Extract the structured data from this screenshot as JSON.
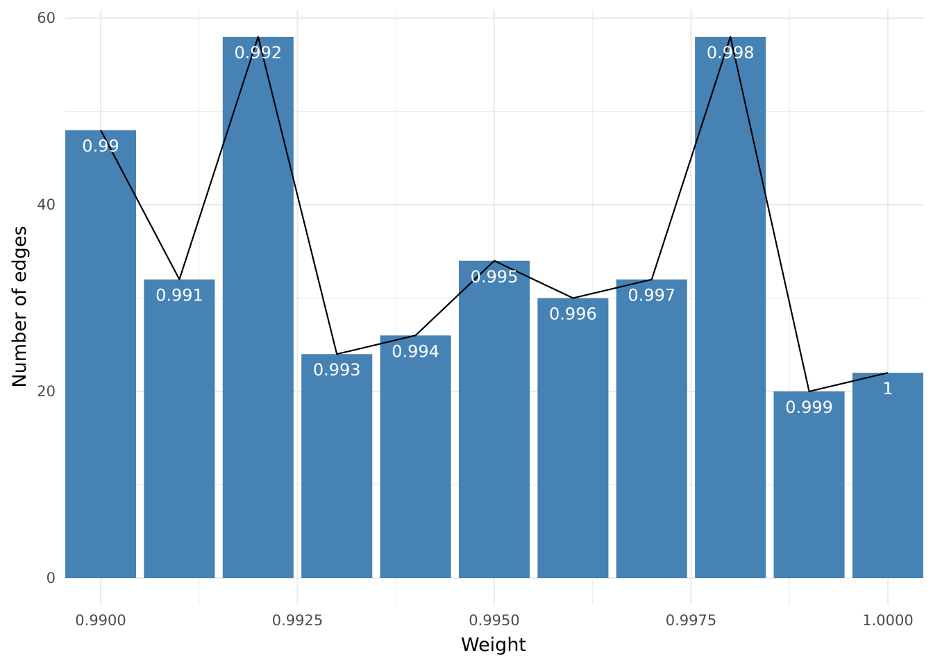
{
  "chart_data": {
    "type": "bar",
    "title": "",
    "xlabel": "Weight",
    "ylabel": "Number of edges",
    "x": [
      0.99,
      0.991,
      0.992,
      0.993,
      0.994,
      0.995,
      0.996,
      0.997,
      0.998,
      0.999,
      1.0
    ],
    "values": [
      48,
      32,
      58,
      24,
      26,
      34,
      30,
      32,
      58,
      20,
      22
    ],
    "bar_labels": [
      "0.99",
      "0.991",
      "0.992",
      "0.993",
      "0.994",
      "0.995",
      "0.996",
      "0.997",
      "0.998",
      "0.999",
      "1"
    ],
    "xlim": [
      0.98955,
      1.00045
    ],
    "ylim": [
      -2.9,
      60.9
    ],
    "x_ticks": [
      0.99,
      0.9925,
      0.995,
      0.9975,
      1.0
    ],
    "x_tick_labels": [
      "0.9900",
      "0.9925",
      "0.9950",
      "0.9975",
      "1.0000"
    ],
    "y_ticks": [
      0,
      20,
      40,
      60
    ],
    "y_tick_labels": [
      "0",
      "20",
      "40",
      "60"
    ],
    "overlay_line": true,
    "grid": true,
    "legend": "none",
    "colors": {
      "bar": "#4682b4",
      "line": "#000000",
      "grid": "#ebebeb",
      "bar_label": "#ffffff",
      "tick_label": "#4d4d4d"
    }
  }
}
